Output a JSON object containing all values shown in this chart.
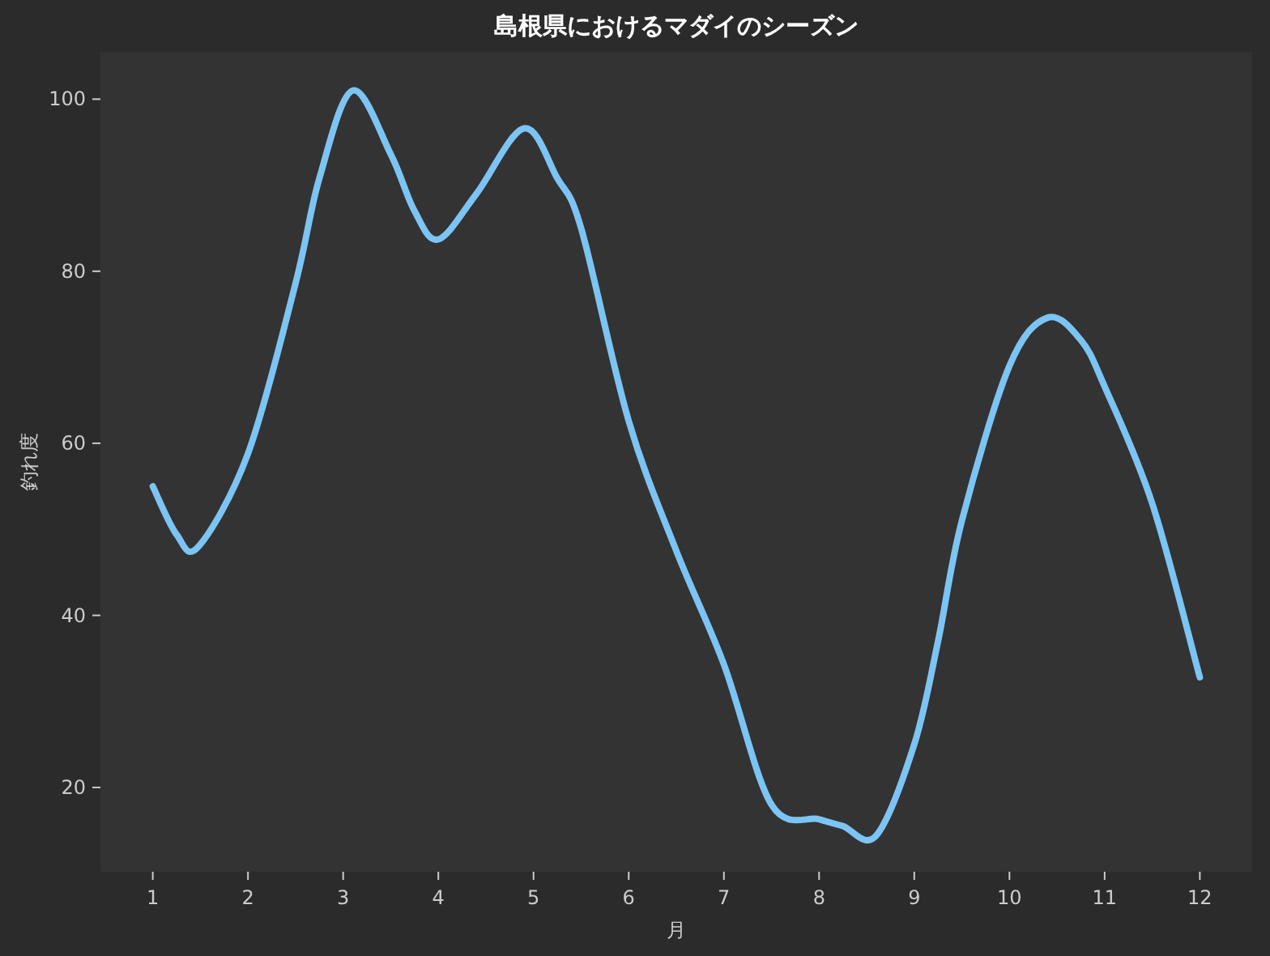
{
  "chart_data": {
    "type": "line",
    "title": "島根県におけるマダイのシーズン",
    "xlabel": "月",
    "ylabel": "釣れ度",
    "x": [
      1,
      1.25,
      1.48,
      2,
      2.5,
      2.75,
      3.1,
      3.5,
      3.75,
      4,
      4.4,
      4.9,
      5.25,
      5.5,
      6,
      6.5,
      7,
      7.5,
      8,
      8.25,
      8.6,
      9,
      9.25,
      9.5,
      10,
      10.4,
      10.75,
      11,
      11.5,
      12
    ],
    "series": [
      {
        "color": "#7cc4f4",
        "values": [
          55,
          49.4,
          48,
          58.8,
          78.6,
          90.8,
          101,
          93.6,
          87,
          83.7,
          89,
          96.6,
          90.8,
          85,
          62.6,
          47.5,
          34.3,
          18,
          16.3,
          15.5,
          14.4,
          25,
          37,
          51,
          69,
          74.6,
          72,
          66.6,
          53,
          32.8
        ]
      }
    ],
    "xlim": [
      0.45,
      12.55
    ],
    "ylim": [
      10.2,
      105.5
    ],
    "xticks": [
      1,
      2,
      3,
      4,
      5,
      6,
      7,
      8,
      9,
      10,
      11,
      12
    ],
    "yticks": [
      20,
      40,
      60,
      80,
      100
    ],
    "grid": false,
    "marker": "none",
    "line_style": "solid"
  }
}
